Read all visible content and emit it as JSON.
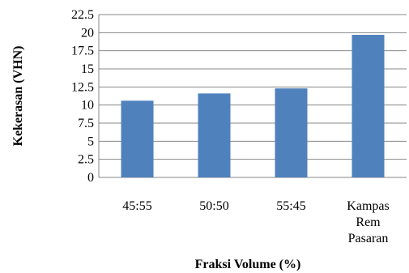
{
  "chart_data": {
    "type": "bar",
    "categories": [
      [
        "45:55"
      ],
      [
        "50:50"
      ],
      [
        "55:45"
      ],
      [
        "Kampas",
        "Rem",
        "Pasaran"
      ]
    ],
    "values": [
      10.6,
      11.6,
      12.3,
      19.7
    ],
    "xlabel": "Fraksi Volume (%)",
    "ylabel": "Kekerasan (VHN)",
    "ylim": [
      0,
      22.5
    ],
    "yticks": [
      "0",
      "2.5",
      "5",
      "7.5",
      "10",
      "12.5",
      "15",
      "17.5",
      "20",
      "22.5"
    ],
    "grid": true,
    "bar_color": "#4F81BD",
    "grid_color": "#878787"
  }
}
